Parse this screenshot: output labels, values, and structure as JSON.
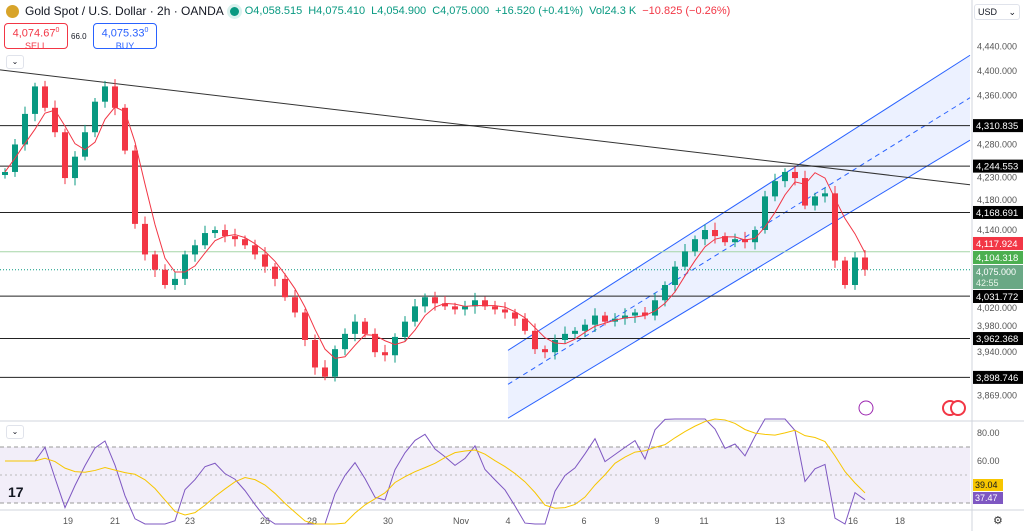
{
  "header": {
    "symbol": "Gold Spot / U.S. Dollar · 2h · OANDA",
    "open": "O4,058.515",
    "high": "H4,075.410",
    "low": "L4,054.900",
    "close": "C4,075.000",
    "change": "+16.520 (+0.41%)",
    "volume": "Vol24.3 K",
    "vol_change": "−10.825 (−0.26%)"
  },
  "trade": {
    "sell_price": "4,074.67",
    "sell_sup": "0",
    "sell_label": "SELL",
    "spread": "66.0",
    "buy_price": "4,075.33",
    "buy_sup": "0",
    "buy_label": "BUY"
  },
  "axis": {
    "currency": "USD",
    "settings_icon": "gear-icon"
  },
  "logo_text": "17",
  "chart_data": {
    "type": "candlestick",
    "timeframe": "2h",
    "x_ticks": [
      "19",
      "21",
      "23",
      "26",
      "28",
      "30",
      "Nov",
      "4",
      "6",
      "9",
      "11",
      "13",
      "16",
      "18"
    ],
    "y_ticks": [
      4440,
      4400,
      4360,
      4280,
      4230,
      4180,
      4140,
      4020,
      3980,
      3940,
      3869
    ],
    "ylim": [
      3850,
      4450
    ],
    "close": [
      4235,
      4280,
      4330,
      4375,
      4340,
      4300,
      4225,
      4260,
      4300,
      4350,
      4375,
      4340,
      4270,
      4150,
      4100,
      4075,
      4050,
      4060,
      4100,
      4115,
      4135,
      4140,
      4130,
      4125,
      4115,
      4100,
      4080,
      4060,
      4030,
      4005,
      3960,
      3915,
      3900,
      3945,
      3970,
      3990,
      3970,
      3940,
      3935,
      3965,
      3990,
      4015,
      4030,
      4020,
      4015,
      4010,
      4015,
      4025,
      4015,
      4010,
      4005,
      3995,
      3975,
      3945,
      3940,
      3960,
      3970,
      3975,
      3985,
      4000,
      3990,
      3995,
      4000,
      4005,
      4000,
      4025,
      4050,
      4080,
      4105,
      4125,
      4140,
      4130,
      4120,
      4125,
      4120,
      4140,
      4195,
      4220,
      4235,
      4225,
      4180,
      4195,
      4200,
      4090,
      4050,
      4095,
      4075
    ],
    "levels": [
      4310.835,
      4244.553,
      4168.691,
      4031.772,
      3962.368,
      3898.746
    ],
    "level_labels": [
      "4,310.835",
      "4,244.553",
      "4,168.691",
      "4,031.772",
      "3,962.368",
      "3,898.746"
    ],
    "ma_value": "4,117.924",
    "ma_color": "#f23645",
    "green_level": 4104.318,
    "green_label": "4,104.318",
    "last_price": 4075.0,
    "last_label": "4,075.000",
    "countdown": "42:55",
    "up_color": "#089981",
    "down_color": "#f23645",
    "rsi": {
      "ticks": [
        "80.00",
        "60.00"
      ],
      "bands": [
        70,
        30
      ],
      "rsi_value": "37.47",
      "rsi_color": "#7e57c2",
      "ma_value": "39.04",
      "ma_color": "#f7c600"
    }
  }
}
